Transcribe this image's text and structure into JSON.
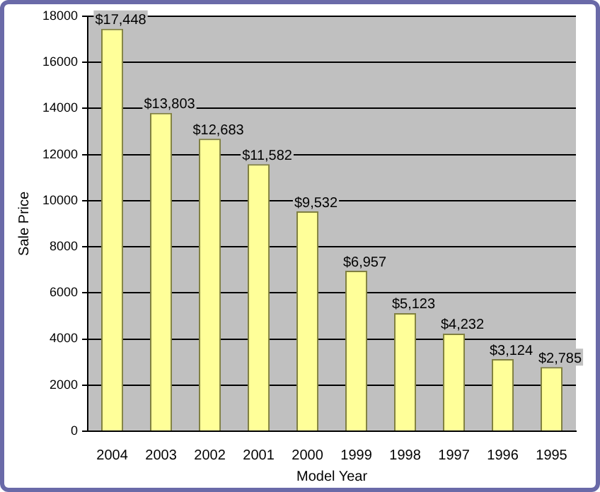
{
  "chart_data": {
    "type": "bar",
    "xlabel": "Model Year",
    "ylabel": "Sale Price",
    "categories": [
      "2004",
      "2003",
      "2002",
      "2001",
      "2000",
      "1999",
      "1998",
      "1997",
      "1996",
      "1995"
    ],
    "values": [
      17448,
      13803,
      12683,
      11582,
      9532,
      6957,
      5123,
      4232,
      3124,
      2785
    ],
    "value_labels": [
      "$17,448",
      "$13,803",
      "$12,683",
      "$11,582",
      "$9,532",
      "$6,957",
      "$5,123",
      "$4,232",
      "$3,124",
      "$2,785"
    ],
    "color": "#ffff99",
    "ylim": [
      0,
      18000
    ],
    "yticks": [
      0,
      2000,
      4000,
      6000,
      8000,
      10000,
      12000,
      14000,
      16000,
      18000
    ],
    "grid": "y",
    "legend": false
  }
}
